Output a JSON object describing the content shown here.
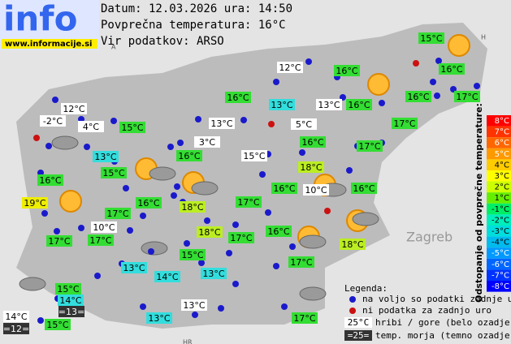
{
  "header": {
    "logo": "info",
    "site": "www.informacije.si",
    "date_line": "Datum: 12.03.2026 ura: 14:50",
    "average_line": "Povprečna temperatura: 16°C",
    "source_line": "Vir podatkov: ARSO"
  },
  "map_labels": {
    "zagreb": "Zagreb",
    "hr": "HR",
    "a": "A",
    "h": "H"
  },
  "stations": [
    {
      "temp": "15°C",
      "color": "#33dd33"
    },
    {
      "temp": "12°C",
      "color": "#ffffff"
    },
    {
      "temp": "16°C",
      "color": "#33dd33"
    },
    {
      "temp": "16°C",
      "color": "#33dd33"
    },
    {
      "temp": "16°C",
      "color": "#33dd33"
    },
    {
      "temp": "13°C",
      "color": "#33dddd"
    },
    {
      "temp": "13°C",
      "color": "#ffffff"
    },
    {
      "temp": "16°C",
      "color": "#33dd33"
    },
    {
      "temp": "16°C",
      "color": "#33dd33"
    },
    {
      "temp": "17°C",
      "color": "#33dd33"
    },
    {
      "temp": "12°C",
      "color": "#ffffff"
    },
    {
      "temp": "-2°C",
      "color": "#ffffff"
    },
    {
      "temp": "4°C",
      "color": "#ffffff"
    },
    {
      "temp": "15°C",
      "color": "#33dd33"
    },
    {
      "temp": "13°C",
      "color": "#ffffff"
    },
    {
      "temp": "5°C",
      "color": "#ffffff"
    },
    {
      "temp": "17°C",
      "color": "#33dd33"
    },
    {
      "temp": "16°C",
      "color": "#33dd33"
    },
    {
      "temp": "3°C",
      "color": "#ffffff"
    },
    {
      "temp": "17°C",
      "color": "#33dd33"
    },
    {
      "temp": "13°C",
      "color": "#33dddd"
    },
    {
      "temp": "16°C",
      "color": "#33dd33"
    },
    {
      "temp": "15°C",
      "color": "#ffffff"
    },
    {
      "temp": "15°C",
      "color": "#33dd33"
    },
    {
      "temp": "18°C",
      "color": "#bbee22"
    },
    {
      "temp": "16°C",
      "color": "#33dd33"
    },
    {
      "temp": "16°C",
      "color": "#33dd33"
    },
    {
      "temp": "10°C",
      "color": "#ffffff"
    },
    {
      "temp": "16°C",
      "color": "#33dd33"
    },
    {
      "temp": "19°C",
      "color": "#eeee00"
    },
    {
      "temp": "16°C",
      "color": "#33dd33"
    },
    {
      "temp": "17°C",
      "color": "#33dd33"
    },
    {
      "temp": "18°C",
      "color": "#bbee22"
    },
    {
      "temp": "17°C",
      "color": "#33dd33"
    },
    {
      "temp": "10°C",
      "color": "#ffffff"
    },
    {
      "temp": "18°C",
      "color": "#bbee22"
    },
    {
      "temp": "16°C",
      "color": "#33dd33"
    },
    {
      "temp": "17°C",
      "color": "#33dd33"
    },
    {
      "temp": "17°C",
      "color": "#33dd33"
    },
    {
      "temp": "17°C",
      "color": "#33dd33"
    },
    {
      "temp": "18°C",
      "color": "#bbee22"
    },
    {
      "temp": "15°C",
      "color": "#33dd33"
    },
    {
      "temp": "17°C",
      "color": "#33dd33"
    },
    {
      "temp": "13°C",
      "color": "#33dddd"
    },
    {
      "temp": "14°C",
      "color": "#33dddd"
    },
    {
      "temp": "13°C",
      "color": "#33dddd"
    },
    {
      "temp": "15°C",
      "color": "#33dd33"
    },
    {
      "temp": "14°C",
      "color": "#33dddd"
    },
    {
      "temp": "13°C",
      "color": "#ffffff"
    },
    {
      "temp": "=13=",
      "color": "#333333"
    },
    {
      "temp": "14°C",
      "color": "#ffffff"
    },
    {
      "temp": "13°C",
      "color": "#33dddd"
    },
    {
      "temp": "17°C",
      "color": "#33dd33"
    },
    {
      "temp": "15°C",
      "color": "#33dd33"
    },
    {
      "temp": "=12=",
      "color": "#333333"
    }
  ],
  "scale": {
    "title": "Odstopanje od povprečne temperature:",
    "steps": [
      {
        "label": "8°C",
        "color": "#ff0000"
      },
      {
        "label": "7°C",
        "color": "#ff3300"
      },
      {
        "label": "6°C",
        "color": "#ff6600"
      },
      {
        "label": "5°C",
        "color": "#ff9900"
      },
      {
        "label": "4°C",
        "color": "#ffcc00"
      },
      {
        "label": "3°C",
        "color": "#ffff00"
      },
      {
        "label": "2°C",
        "color": "#ccff00"
      },
      {
        "label": "1°C",
        "color": "#66ee00"
      },
      {
        "label": "-1°C",
        "color": "#00ee66"
      },
      {
        "label": "-2°C",
        "color": "#00eebb"
      },
      {
        "label": "-3°C",
        "color": "#00dddd"
      },
      {
        "label": "-4°C",
        "color": "#00bbee"
      },
      {
        "label": "-5°C",
        "color": "#0099ff"
      },
      {
        "label": "-6°C",
        "color": "#0066ff"
      },
      {
        "label": "-7°C",
        "color": "#0033ff"
      },
      {
        "label": "-8°C",
        "color": "#0000ff"
      }
    ]
  },
  "legend": {
    "title": "Legenda:",
    "available": "na voljo so podatki zadnje ure",
    "missing": "ni podatka za zadnjo uro",
    "mountain_sample": "25°C",
    "mountain_text": "hribi / gore (belo ozadje)",
    "sea_sample": "=25=",
    "sea_text": "temp. morja (temno ozadje)"
  }
}
